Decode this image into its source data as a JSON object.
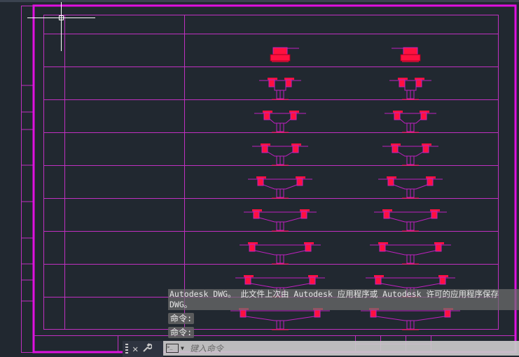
{
  "colors": {
    "background": "#212830",
    "frame": "#e010e0",
    "grid": "#c030c0",
    "section": "#ff1040",
    "section_line": "#c020c0"
  },
  "drawing": {
    "rows": 9,
    "columns": 2,
    "section_half_spans": [
      10,
      12,
      19,
      22,
      28,
      34,
      40,
      46,
      53
    ]
  },
  "command_line": {
    "history_line1": "Autodesk DWG。  此文件上次由 Autodesk 应用程序或 Autodesk 许可的应用程序保存",
    "history_line2": "DWG。",
    "prompt1": "命令:",
    "prompt2": "命令:",
    "input_placeholder": "键入命令",
    "icons": {
      "grip": "grip-icon",
      "close": "close-icon",
      "customize": "wrench-icon",
      "command": "command-prompt-icon"
    },
    "close_glyph": "✕",
    "customize_glyph": "🔧",
    "dropdown_glyph": "▼"
  }
}
